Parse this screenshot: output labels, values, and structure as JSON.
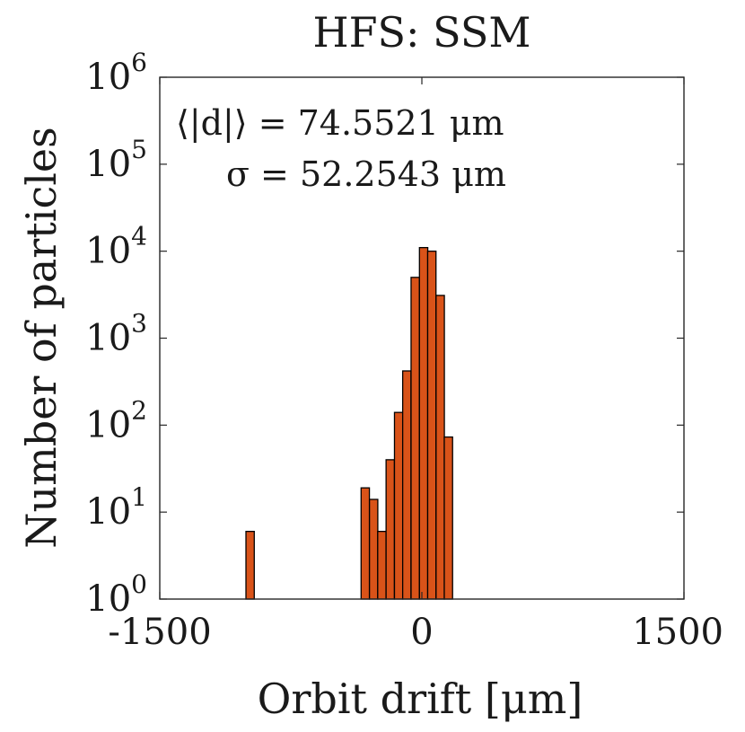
{
  "chart_data": {
    "type": "bar",
    "title": "HFS: SSM",
    "xlabel": "Orbit drift [μm]",
    "ylabel": "Number of particles",
    "x_scale": "linear",
    "y_scale": "log",
    "xlim": [
      -1500,
      1500
    ],
    "ylim": [
      1,
      1000000
    ],
    "x_ticks": [
      {
        "value": -1500,
        "label": "-1500"
      },
      {
        "value": 0,
        "label": "0"
      },
      {
        "value": 1500,
        "label": "1500"
      }
    ],
    "y_ticks": [
      {
        "value": 1,
        "base": "10",
        "exp": "0"
      },
      {
        "value": 10,
        "base": "10",
        "exp": "1"
      },
      {
        "value": 100,
        "base": "10",
        "exp": "2"
      },
      {
        "value": 1000,
        "base": "10",
        "exp": "3"
      },
      {
        "value": 10000,
        "base": "10",
        "exp": "4"
      },
      {
        "value": 100000,
        "base": "10",
        "exp": "5"
      },
      {
        "value": 1000000,
        "base": "10",
        "exp": "6"
      }
    ],
    "bin_width": 47.6,
    "bins": [
      {
        "x": -983,
        "count": 6
      },
      {
        "x": -324,
        "count": 19
      },
      {
        "x": -276,
        "count": 14
      },
      {
        "x": -229,
        "count": 6
      },
      {
        "x": -181,
        "count": 40
      },
      {
        "x": -133,
        "count": 140
      },
      {
        "x": -86,
        "count": 420
      },
      {
        "x": -38,
        "count": 5000
      },
      {
        "x": 10,
        "count": 11000
      },
      {
        "x": 57,
        "count": 10000
      },
      {
        "x": 105,
        "count": 3100
      },
      {
        "x": 152,
        "count": 73
      }
    ],
    "bar_color": "#D95319",
    "annotations": [
      {
        "lhs": "⟨|d|⟩",
        "value": "74.5521",
        "unit": "μm"
      },
      {
        "lhs": "σ",
        "value": "52.2543",
        "unit": "μm"
      }
    ]
  }
}
